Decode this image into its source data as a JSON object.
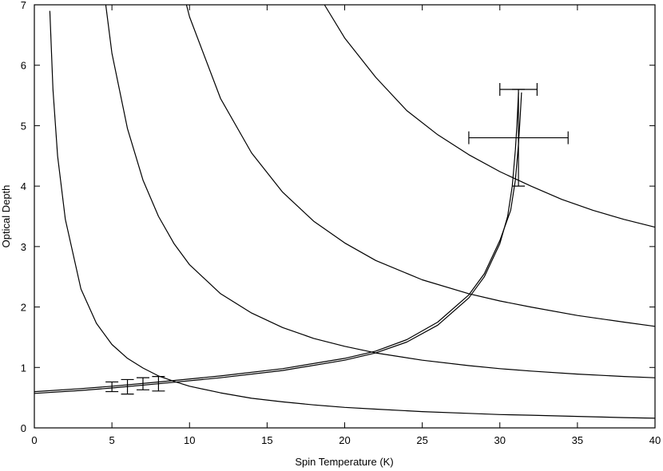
{
  "chart_data": {
    "type": "line",
    "title": "",
    "xlabel": "Spin Temperature (K)",
    "ylabel": "Optical Depth",
    "xlim": [
      0,
      40
    ],
    "ylim": [
      0,
      7
    ],
    "x_ticks": [
      0,
      5,
      10,
      15,
      20,
      25,
      30,
      35,
      40
    ],
    "y_ticks": [
      0,
      1,
      2,
      3,
      4,
      5,
      6,
      7
    ],
    "grid": false,
    "legend": "none",
    "curve_color": "#000000",
    "series": [
      {
        "x": [
          1.0,
          1.2,
          1.5,
          2,
          3,
          4,
          5,
          6,
          7,
          8,
          9,
          10,
          12,
          14,
          16,
          18,
          20,
          22,
          25,
          28,
          30,
          32,
          35,
          38,
          40
        ],
        "y": [
          6.9,
          5.6,
          4.5,
          3.45,
          2.3,
          1.73,
          1.38,
          1.15,
          0.99,
          0.86,
          0.77,
          0.69,
          0.58,
          0.49,
          0.43,
          0.38,
          0.34,
          0.31,
          0.27,
          0.24,
          0.22,
          0.21,
          0.19,
          0.17,
          0.16
        ]
      },
      {
        "x": [
          4.6,
          5,
          6,
          7,
          8,
          9,
          10,
          12,
          14,
          16,
          18,
          20,
          22,
          25,
          28,
          30,
          32,
          35,
          38,
          40
        ],
        "y": [
          7.0,
          6.2,
          4.95,
          4.1,
          3.5,
          3.05,
          2.7,
          2.22,
          1.9,
          1.66,
          1.48,
          1.35,
          1.24,
          1.12,
          1.03,
          0.98,
          0.94,
          0.89,
          0.85,
          0.83
        ]
      },
      {
        "x": [
          9.8,
          10,
          12,
          14,
          16,
          18,
          20,
          22,
          25,
          28,
          30,
          32,
          35,
          38,
          40
        ],
        "y": [
          7.0,
          6.8,
          5.45,
          4.55,
          3.9,
          3.42,
          3.06,
          2.77,
          2.45,
          2.22,
          2.1,
          2.0,
          1.86,
          1.75,
          1.68
        ]
      },
      {
        "x": [
          18.7,
          20,
          22,
          24,
          26,
          28,
          30,
          32,
          34,
          36,
          38,
          40
        ],
        "y": [
          7.0,
          6.45,
          5.8,
          5.25,
          4.85,
          4.52,
          4.24,
          4.0,
          3.78,
          3.6,
          3.45,
          3.32
        ]
      },
      {
        "x": [
          0,
          3,
          5,
          8,
          12,
          16,
          20,
          22,
          24,
          26,
          28,
          29,
          30,
          30.5,
          30.8,
          31.0,
          31.1,
          31.2
        ],
        "y": [
          0.57,
          0.62,
          0.66,
          0.73,
          0.83,
          0.95,
          1.12,
          1.24,
          1.42,
          1.7,
          2.15,
          2.5,
          3.05,
          3.5,
          4.0,
          4.6,
          5.0,
          5.55
        ]
      },
      {
        "x": [
          0,
          3,
          5,
          8,
          12,
          16,
          20,
          22,
          24,
          26,
          28,
          29,
          30,
          30.7,
          31.0,
          31.2,
          31.3,
          31.4
        ],
        "y": [
          0.6,
          0.65,
          0.69,
          0.76,
          0.86,
          0.98,
          1.15,
          1.27,
          1.46,
          1.75,
          2.2,
          2.55,
          3.1,
          3.6,
          4.1,
          4.7,
          5.1,
          5.55
        ]
      }
    ],
    "error_bars": [
      {
        "x": 31.2,
        "y": 5.6,
        "xerr": 1.2,
        "yerr": 0.0
      },
      {
        "x": 31.2,
        "y": 4.8,
        "xerr": 3.2,
        "yerr": 0.8
      },
      {
        "x": 5.0,
        "y": 0.68,
        "xerr": 0.0,
        "yerr": 0.08
      },
      {
        "x": 6.0,
        "y": 0.68,
        "xerr": 0.0,
        "yerr": 0.12
      },
      {
        "x": 7.0,
        "y": 0.73,
        "xerr": 0.0,
        "yerr": 0.1
      },
      {
        "x": 8.0,
        "y": 0.73,
        "xerr": 0.0,
        "yerr": 0.12
      }
    ]
  }
}
